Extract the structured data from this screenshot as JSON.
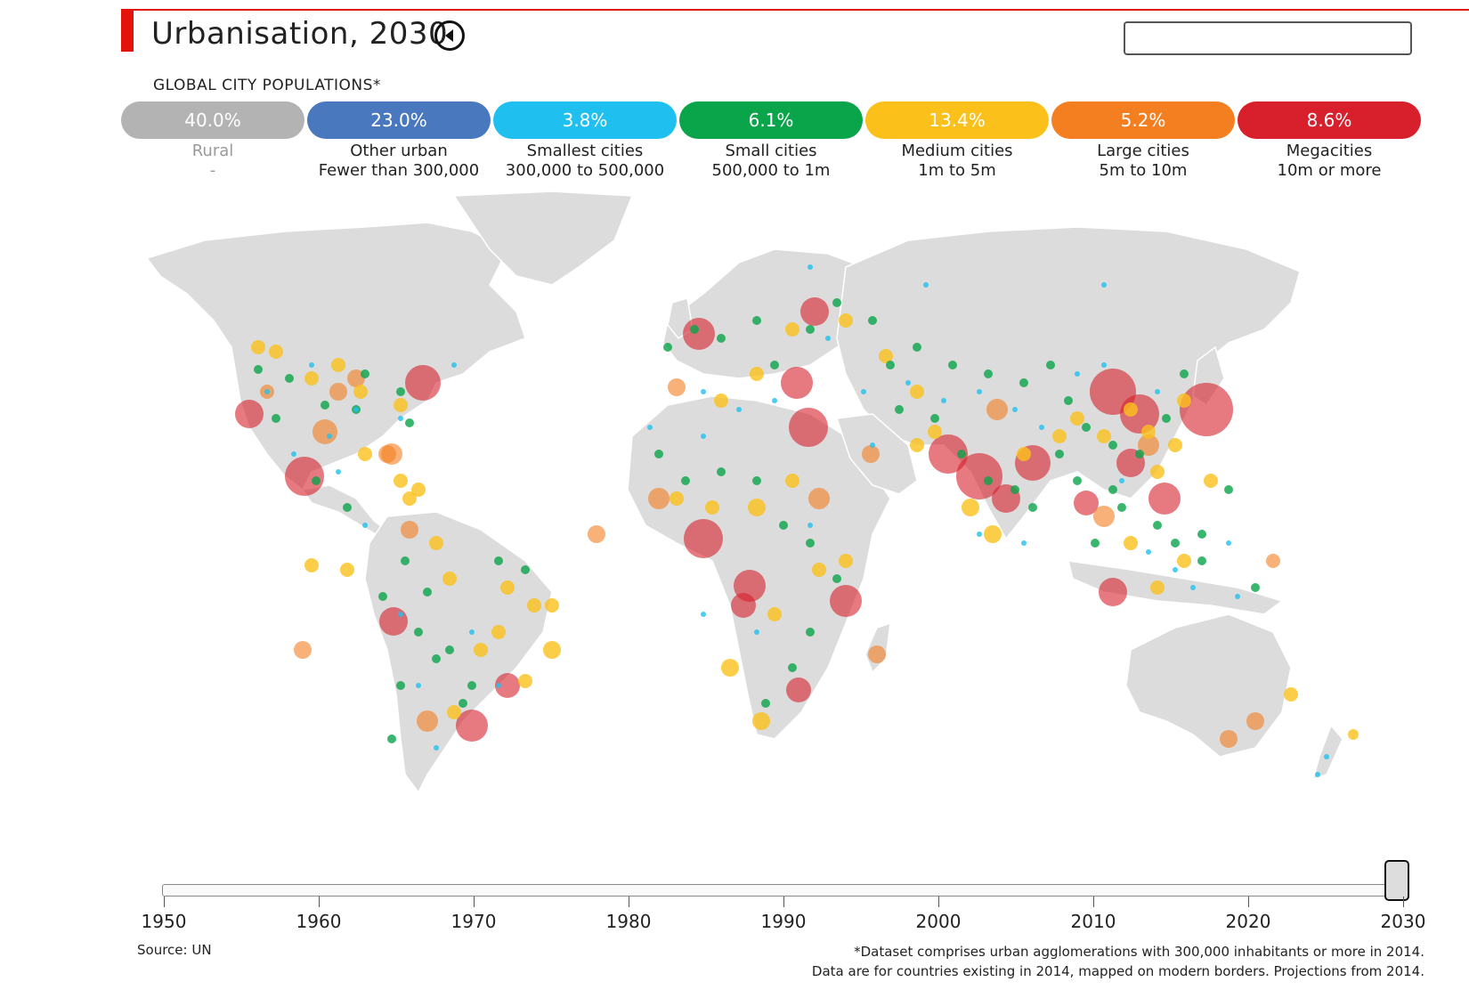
{
  "header": {
    "title": "Urbanisation, 2030",
    "back_icon": "chevron-left-circle-icon",
    "search_value": ""
  },
  "subtitle": "GLOBAL CITY POPULATIONS*",
  "legend": [
    {
      "pct": "40.0%",
      "name": "Rural",
      "range": "-",
      "color": "#b3b3b3"
    },
    {
      "pct": "23.0%",
      "name": "Other urban",
      "range": "Fewer than 300,000",
      "color": "#4a78bf"
    },
    {
      "pct": "3.8%",
      "name": "Smallest cities",
      "range": "300,000 to 500,000",
      "color": "#1fc0f0"
    },
    {
      "pct": "6.1%",
      "name": "Small cities",
      "range": "500,000 to 1m",
      "color": "#0aa44a"
    },
    {
      "pct": "13.4%",
      "name": "Medium cities",
      "range": "1m to 5m",
      "color": "#fbc11a"
    },
    {
      "pct": "5.2%",
      "name": "Large cities",
      "range": "5m to 10m",
      "color": "#f47f20"
    },
    {
      "pct": "8.6%",
      "name": "Megacities",
      "range": "10m or more",
      "color": "#d7202c"
    }
  ],
  "timeline": {
    "years": [
      "1950",
      "1960",
      "1970",
      "1980",
      "1990",
      "2000",
      "2010",
      "2020",
      "2030"
    ],
    "selected": "2030"
  },
  "source": "Source: UN",
  "footnote_line1": "*Dataset comprises urban agglomerations with 300,000 inhabitants or more in 2014.",
  "footnote_line2": "Data are for countries existing in 2014, mapped on modern borders. Projections from 2014."
}
